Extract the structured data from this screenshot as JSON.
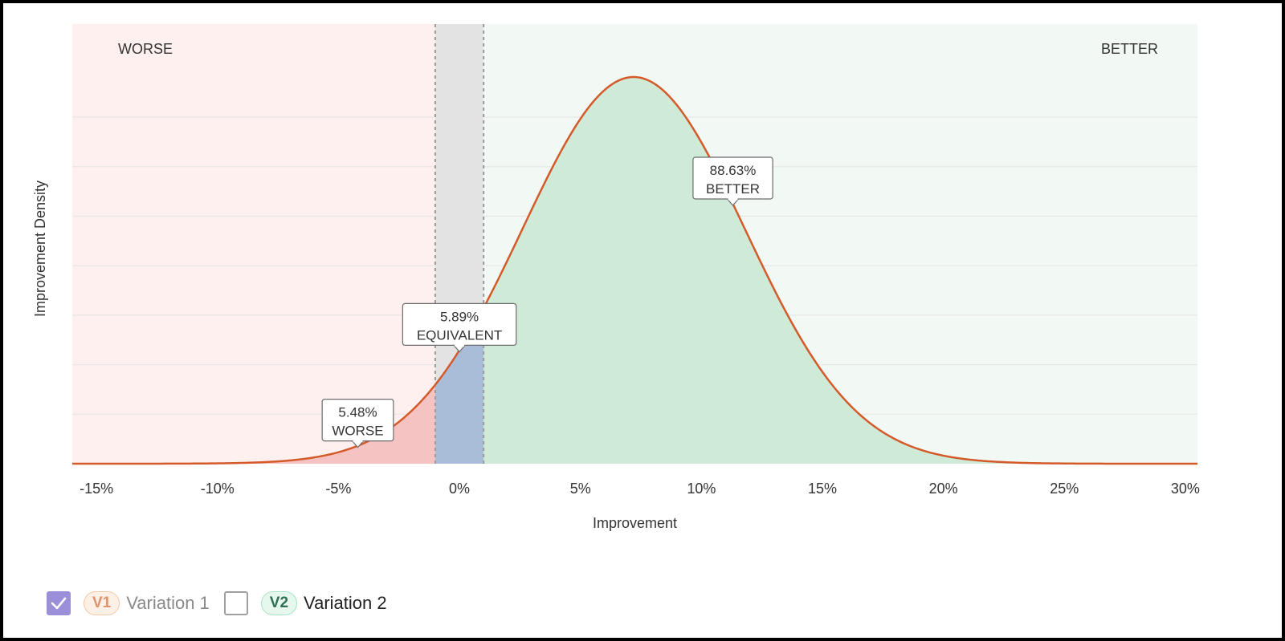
{
  "chart_data": {
    "type": "area",
    "xlabel": "Improvement",
    "ylabel": "Improvement Density",
    "xlim": [
      -16,
      30.5
    ],
    "x_ticks": [
      "-15%",
      "-10%",
      "-5%",
      "0%",
      "5%",
      "10%",
      "15%",
      "20%",
      "25%",
      "30%"
    ],
    "x_tick_values": [
      -15,
      -10,
      -5,
      0,
      5,
      10,
      15,
      20,
      25,
      30
    ],
    "grid": "horizontal",
    "equivalence_band": [
      -1,
      1
    ],
    "regions": [
      {
        "label": "WORSE",
        "probability": "5.48%",
        "range": [
          -16,
          -1
        ],
        "region_color": "#fdf0ef",
        "fill_color": "#f5c4c2"
      },
      {
        "label": "EQUIVALENT",
        "probability": "5.89%",
        "range": [
          -1,
          1
        ],
        "region_color": "#e3e3e3",
        "fill_color": "#a9bcd8"
      },
      {
        "label": "BETTER",
        "probability": "88.63%",
        "range": [
          1,
          30.5
        ],
        "region_color": "#f2f8f3",
        "fill_color": "#cfebd8"
      }
    ],
    "zone_labels": {
      "left": "WORSE",
      "right": "BETTER"
    },
    "callouts": [
      {
        "value": "5.48%",
        "label": "WORSE",
        "x": -4.2
      },
      {
        "value": "5.89%",
        "label": "EQUIVALENT",
        "x": 0
      },
      {
        "value": "88.63%",
        "label": "BETTER",
        "x": 11.3
      }
    ],
    "distribution": {
      "mean": 7.2,
      "sd": 4.6,
      "peak_density": 1.0
    },
    "line_color": "#d45a2a"
  },
  "legend": [
    {
      "badge": "V1",
      "label": "Variation 1",
      "checked": true
    },
    {
      "badge": "V2",
      "label": "Variation 2",
      "checked": false
    }
  ]
}
